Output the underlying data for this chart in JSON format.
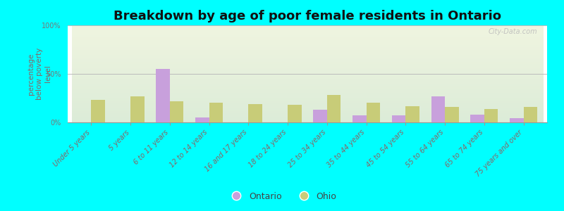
{
  "title": "Breakdown by age of poor female residents in Ontario",
  "ylabel": "percentage\nbelow poverty\nlevel",
  "categories": [
    "Under 5 years",
    "5 years",
    "6 to 11 years",
    "12 to 14 years",
    "16 and 17 years",
    "18 to 24 years",
    "25 to 34 years",
    "35 to 44 years",
    "45 to 54 years",
    "55 to 64 years",
    "65 to 74 years",
    "75 years and over"
  ],
  "ontario_values": [
    0,
    0,
    55,
    5,
    0,
    0,
    13,
    7,
    7,
    27,
    8,
    4
  ],
  "ohio_values": [
    23,
    27,
    22,
    20,
    19,
    18,
    28,
    20,
    17,
    16,
    14,
    16
  ],
  "ontario_color": "#c8a0dc",
  "ohio_color": "#c8cc78",
  "background_top": "#f0f5e0",
  "background_bottom": "#dcecd8",
  "outer_bg": "#00ffff",
  "ylim": [
    0,
    100
  ],
  "yticks": [
    0,
    50,
    100
  ],
  "ytick_labels": [
    "0%",
    "50%",
    "100%"
  ],
  "legend_ontario": "Ontario",
  "legend_ohio": "Ohio",
  "bar_width": 0.35,
  "title_fontsize": 13,
  "axis_label_fontsize": 7.5,
  "tick_fontsize": 7,
  "watermark": "City-Data.com"
}
